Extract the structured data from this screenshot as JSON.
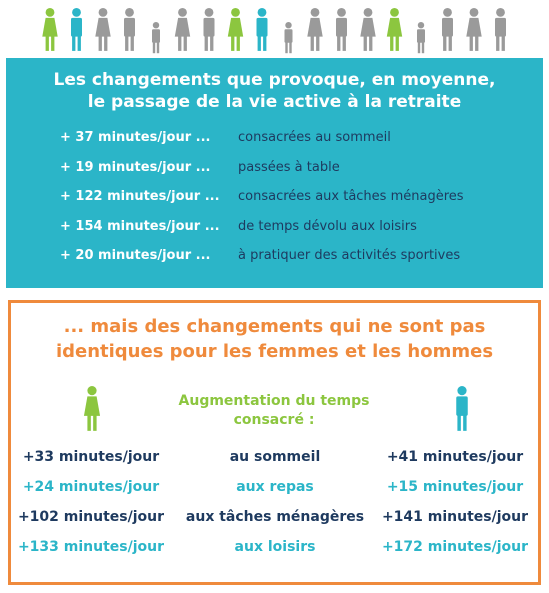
{
  "banner": {
    "title_lines": [
      "Les changements que provoque, en moyenne,",
      "le passage de la vie active à la retraite"
    ],
    "rows": [
      [
        "+ 37 minutes/jour ...",
        "consacrées au sommeil"
      ],
      [
        "+ 19 minutes/jour ...",
        "passées à table"
      ],
      [
        "+ 122 minutes/jour ...",
        "consacrées aux tâches ménagères"
      ],
      [
        "+ 154 minutes/jour ...",
        "de temps dévolu aux loisirs"
      ],
      [
        "+ 20 minutes/jour ...",
        "à pratiquer des activités sportives"
      ]
    ]
  },
  "comparison": {
    "title_lines": [
      "... mais des changements qui ne sont pas",
      "identiques pour les femmes et les hommes"
    ],
    "center_heading_lines": [
      "Augmentation du temps",
      "consacré  :"
    ],
    "rows": [
      [
        "+33 minutes/jour",
        "au sommeil",
        "+41 minutes/jour"
      ],
      [
        "+24 minutes/jour",
        "aux repas",
        "+15 minutes/jour"
      ],
      [
        "+102 minutes/jour",
        "aux tâches ménagères",
        "+141 minutes/jour"
      ],
      [
        "+133 minutes/jour",
        "aux loisirs",
        "+172 minutes/jour"
      ]
    ]
  }
}
